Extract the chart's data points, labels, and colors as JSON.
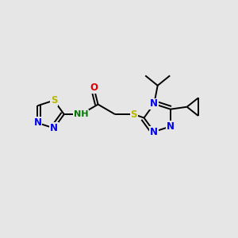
{
  "bg_color": "#e6e6e6",
  "bond_color": "#000000",
  "bond_width": 1.4,
  "atom_colors": {
    "N": "#0000ee",
    "S": "#b8b800",
    "O": "#dd0000",
    "C": "#000000",
    "H": "#007700"
  },
  "font_size": 8.5,
  "fig_size": [
    3.0,
    3.0
  ],
  "dpi": 100
}
